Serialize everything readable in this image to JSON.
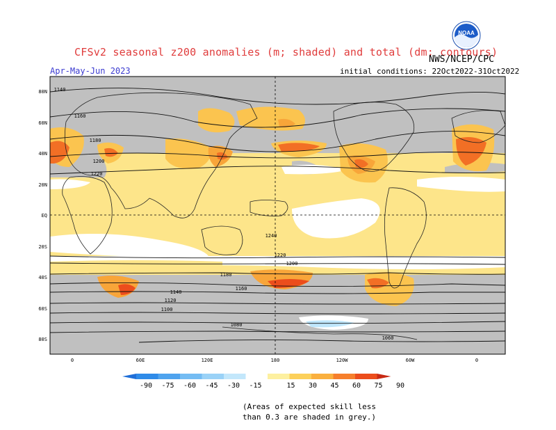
{
  "header": {
    "title": "CFSv2 seasonal z200 anomalies (m; shaded) and total (dm; contours)",
    "agency": "NWS/NCEP/CPC",
    "period": "Apr-May-Jun 2023",
    "init": "initial conditions: 22Oct2022-31Oct2022",
    "logo_text": "NOAA"
  },
  "axes": {
    "lat_labels": [
      "80N",
      "60N",
      "40N",
      "20N",
      "EQ",
      "20S",
      "40S",
      "60S",
      "80S"
    ],
    "lon_labels": [
      "0",
      "60E",
      "120E",
      "180",
      "120W",
      "60W",
      "0"
    ]
  },
  "contours": {
    "labels": [
      "1140",
      "1160",
      "1180",
      "1200",
      "1220",
      "1240",
      "1220",
      "1200",
      "1180",
      "1160",
      "1140",
      "1120",
      "1100",
      "1080",
      "1060"
    ]
  },
  "colorbar": {
    "ticks": [
      "-90",
      "-75",
      "-60",
      "-45",
      "-30",
      "-15",
      "15",
      "30",
      "45",
      "60",
      "75",
      "90"
    ],
    "colors": [
      "#1f6fd8",
      "#2f8be8",
      "#4fa3ee",
      "#74bcf3",
      "#9ad2f7",
      "#c3e7fb",
      "#ffffff",
      "#fdf0a0",
      "#fcd05a",
      "#fab03e",
      "#f67f2c",
      "#ec4d1c",
      "#c82a14"
    ]
  },
  "map_colors": {
    "land": "#cdcdcd",
    "grey_mask": "#c0c0c0",
    "pos15": "#fde58a",
    "pos30": "#fbc44f",
    "pos45": "#f8a539",
    "pos60": "#f26f25",
    "pos75": "#e5471b",
    "neg15": "#bfe6fb"
  },
  "note": {
    "line1": "(Areas of expected skill less",
    "line2": "than 0.3 are shaded in grey.)"
  }
}
